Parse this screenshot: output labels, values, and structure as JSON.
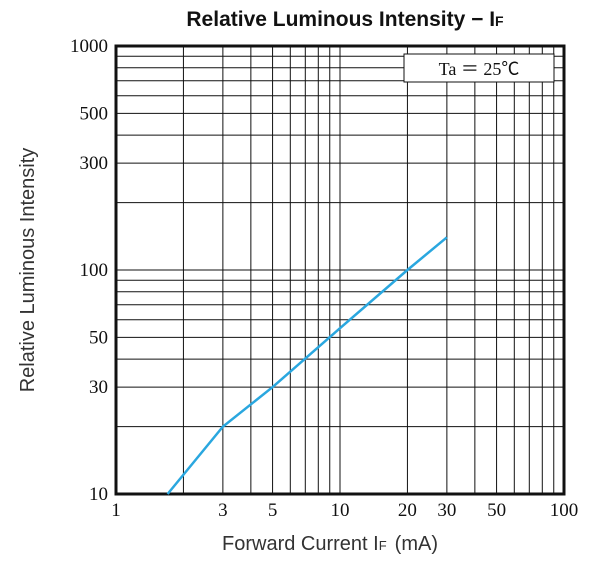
{
  "chart_data": {
    "type": "line",
    "title_main": "Relative Luminous Intensity − I",
    "title_sub": "F",
    "xlabel_main": "Forward Current  I",
    "xlabel_sub": "F",
    "xlabel_unit": "(mA)",
    "ylabel": "Relative Luminous Intensity",
    "annotation": "Ta ＝ 25℃",
    "x_scale": "log",
    "y_scale": "log",
    "xlim": [
      1,
      100
    ],
    "ylim": [
      10,
      1000
    ],
    "x_ticks": [
      {
        "value": 1,
        "label": "1"
      },
      {
        "value": 3,
        "label": "3"
      },
      {
        "value": 5,
        "label": "5"
      },
      {
        "value": 10,
        "label": "10"
      },
      {
        "value": 20,
        "label": "20"
      },
      {
        "value": 30,
        "label": "30"
      },
      {
        "value": 50,
        "label": "50"
      },
      {
        "value": 100,
        "label": "100"
      }
    ],
    "y_ticks": [
      {
        "value": 10,
        "label": "10"
      },
      {
        "value": 30,
        "label": "30"
      },
      {
        "value": 50,
        "label": "50"
      },
      {
        "value": 100,
        "label": "100"
      },
      {
        "value": 300,
        "label": "300"
      },
      {
        "value": 500,
        "label": "500"
      },
      {
        "value": 1000,
        "label": "1000"
      }
    ],
    "grid": true,
    "series": [
      {
        "color": "#2aa7df",
        "points": [
          [
            1.7,
            10
          ],
          [
            3,
            20
          ],
          [
            5,
            30
          ],
          [
            10,
            55
          ],
          [
            20,
            100
          ],
          [
            30,
            140
          ]
        ]
      }
    ]
  }
}
